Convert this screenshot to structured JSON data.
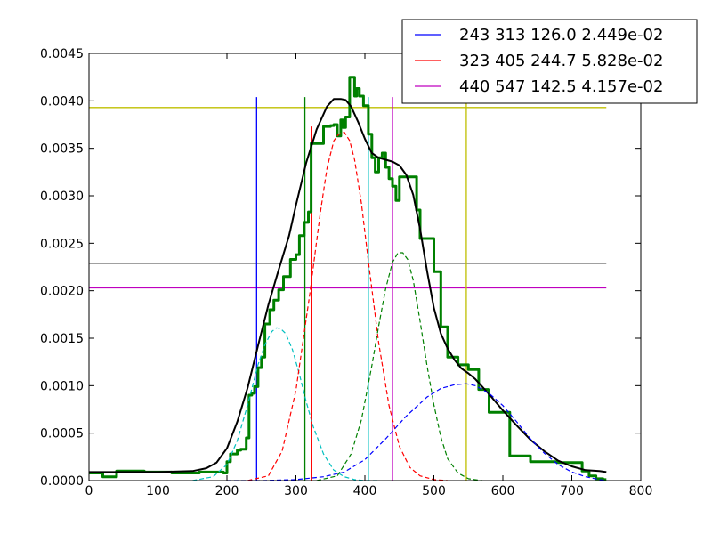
{
  "chart_data": {
    "type": "line",
    "title": "",
    "xlabel": "",
    "ylabel": "",
    "xlim": [
      0,
      800
    ],
    "ylim": [
      0,
      0.0045
    ],
    "x_ticks": [
      "0",
      "100",
      "200",
      "300",
      "400",
      "500",
      "600",
      "700",
      "800"
    ],
    "y_ticks": [
      "0.0000",
      "0.0005",
      "0.0010",
      "0.0015",
      "0.0020",
      "0.0025",
      "0.0030",
      "0.0035",
      "0.0040",
      "0.0045"
    ],
    "grid": false,
    "legend_position": "top-right",
    "legend": [
      {
        "label": "243 313 126.0 2.449e-02",
        "color": "#0000ff"
      },
      {
        "label": "323 405 244.7 5.828e-02",
        "color": "#ff0000"
      },
      {
        "label": "440 547 142.5 4.157e-02",
        "color": "#bf00bf"
      }
    ],
    "hlines": [
      {
        "y": 0.00393,
        "color": "#bfbf00"
      },
      {
        "y": 0.00229,
        "color": "#000000"
      },
      {
        "y": 0.00203,
        "color": "#bf00bf"
      }
    ],
    "vlines": [
      {
        "x": 243,
        "color": "#0000ff",
        "ymax": 0.00404
      },
      {
        "x": 313,
        "color": "#008000",
        "ymax": 0.00404
      },
      {
        "x": 323,
        "color": "#ff0000",
        "ymax": 0.00373
      },
      {
        "x": 405,
        "color": "#00bfbf",
        "ymax": 0.00404
      },
      {
        "x": 440,
        "color": "#bf00bf",
        "ymax": 0.00404
      },
      {
        "x": 547,
        "color": "#bfbf00",
        "ymax": 0.00404
      }
    ],
    "series": [
      {
        "style": "step",
        "color": "#008000",
        "x": [
          0,
          20,
          40,
          80,
          120,
          160,
          195,
          200,
          205,
          215,
          220,
          228,
          232,
          236,
          240,
          245,
          250,
          255,
          262,
          268,
          275,
          282,
          292,
          300,
          305,
          312,
          318,
          322,
          328,
          340,
          345,
          350,
          355,
          360,
          365,
          368,
          372,
          378,
          385,
          388,
          392,
          398,
          402,
          405,
          410,
          415,
          420,
          425,
          430,
          435,
          440,
          445,
          450,
          475,
          480,
          500,
          510,
          520,
          535,
          540,
          550,
          565,
          575,
          580,
          605,
          610,
          635,
          640,
          655,
          680,
          715,
          725,
          735,
          745,
          750
        ],
        "y": [
          8e-05,
          4e-05,
          0.0001,
          9e-05,
          8e-05,
          9e-05,
          8e-05,
          0.0002,
          0.00028,
          0.00032,
          0.00033,
          0.00045,
          0.0009,
          0.00092,
          0.00099,
          0.00119,
          0.0013,
          0.00165,
          0.0018,
          0.0019,
          0.00201,
          0.00215,
          0.00233,
          0.00238,
          0.00258,
          0.00272,
          0.00283,
          0.00355,
          0.00355,
          0.00373,
          0.00373,
          0.00374,
          0.00375,
          0.00363,
          0.0038,
          0.00372,
          0.00383,
          0.00425,
          0.00405,
          0.00413,
          0.00405,
          0.00395,
          0.00395,
          0.00365,
          0.0034,
          0.00325,
          0.0034,
          0.00345,
          0.0033,
          0.00318,
          0.0031,
          0.00295,
          0.0032,
          0.00285,
          0.00255,
          0.0022,
          0.00162,
          0.0013,
          0.00122,
          0.00122,
          0.00117,
          0.00096,
          0.00096,
          0.00072,
          0.00072,
          0.00026,
          0.00026,
          0.0002,
          0.0002,
          0.00019,
          0.0001,
          5e-05,
          2e-05,
          1e-05,
          1e-05
        ]
      },
      {
        "style": "solid",
        "color": "#000000",
        "x": [
          0,
          100,
          150,
          170,
          185,
          200,
          215,
          230,
          245,
          260,
          275,
          290,
          300,
          315,
          330,
          345,
          355,
          365,
          372,
          380,
          390,
          400,
          410,
          420,
          430,
          440,
          450,
          460,
          470,
          480,
          490,
          500,
          510,
          520,
          530,
          540,
          550,
          560,
          570,
          580,
          600,
          620,
          640,
          660,
          680,
          700,
          720,
          740,
          750
        ],
        "y": [
          9e-05,
          9e-05,
          0.0001,
          0.00013,
          0.00019,
          0.00034,
          0.00062,
          0.00098,
          0.00142,
          0.00185,
          0.00222,
          0.00258,
          0.0029,
          0.00335,
          0.0037,
          0.00394,
          0.00402,
          0.00402,
          0.00401,
          0.00394,
          0.00378,
          0.0036,
          0.00345,
          0.0034,
          0.00338,
          0.00336,
          0.00332,
          0.00322,
          0.00301,
          0.00265,
          0.00221,
          0.00182,
          0.00155,
          0.00139,
          0.00127,
          0.00118,
          0.00113,
          0.00107,
          0.00099,
          0.00091,
          0.00074,
          0.00058,
          0.00043,
          0.00031,
          0.00021,
          0.00015,
          0.00011,
          0.0001,
          9e-05
        ]
      },
      {
        "style": "dashed",
        "color": "#00bfbf",
        "x": [
          150,
          180,
          200,
          215,
          230,
          245,
          255,
          265,
          272,
          278,
          285,
          295,
          305,
          315,
          325,
          340,
          355,
          370,
          385,
          400,
          420
        ],
        "y": [
          0.0,
          4e-05,
          0.00017,
          0.00042,
          0.0008,
          0.00122,
          0.00143,
          0.00157,
          0.00161,
          0.0016,
          0.00155,
          0.00138,
          0.00112,
          0.00083,
          0.00057,
          0.00028,
          0.00011,
          4e-05,
          1e-05,
          0.0,
          0.0
        ]
      },
      {
        "style": "dashed",
        "color": "#ff0000",
        "x": [
          230,
          260,
          280,
          300,
          320,
          335,
          345,
          355,
          362,
          370,
          378,
          385,
          395,
          405,
          420,
          435,
          450,
          465,
          480,
          500,
          520
        ],
        "y": [
          0.0,
          5e-05,
          0.00031,
          0.00095,
          0.00196,
          0.0028,
          0.00329,
          0.00358,
          0.00365,
          0.00367,
          0.00358,
          0.00338,
          0.00292,
          0.00231,
          0.00145,
          0.00079,
          0.00036,
          0.00014,
          5e-05,
          1e-05,
          0.0
        ]
      },
      {
        "style": "dashed",
        "color": "#008000",
        "x": [
          330,
          360,
          380,
          395,
          410,
          420,
          430,
          440,
          448,
          455,
          462,
          470,
          480,
          490,
          500,
          510,
          520,
          535,
          550,
          570
        ],
        "y": [
          0.0,
          5e-05,
          0.00028,
          0.00064,
          0.00121,
          0.00163,
          0.00202,
          0.0023,
          0.0024,
          0.0024,
          0.00233,
          0.00211,
          0.00168,
          0.00121,
          0.0008,
          0.00046,
          0.00023,
          8e-05,
          2e-05,
          0.0
        ]
      },
      {
        "style": "dashed",
        "color": "#0000ff",
        "x": [
          200,
          250,
          300,
          340,
          370,
          400,
          430,
          460,
          490,
          510,
          530,
          547,
          560,
          580,
          600,
          620,
          640,
          660,
          680,
          700,
          720,
          740,
          750
        ],
        "y": [
          0.0,
          0.0,
          1e-05,
          4e-05,
          9e-05,
          0.00022,
          0.00044,
          0.00068,
          0.00088,
          0.00097,
          0.00101,
          0.00102,
          0.001,
          0.00092,
          0.00079,
          0.00062,
          0.00044,
          0.00029,
          0.00017,
          9e-05,
          4e-05,
          1e-05,
          0.0
        ]
      }
    ]
  }
}
